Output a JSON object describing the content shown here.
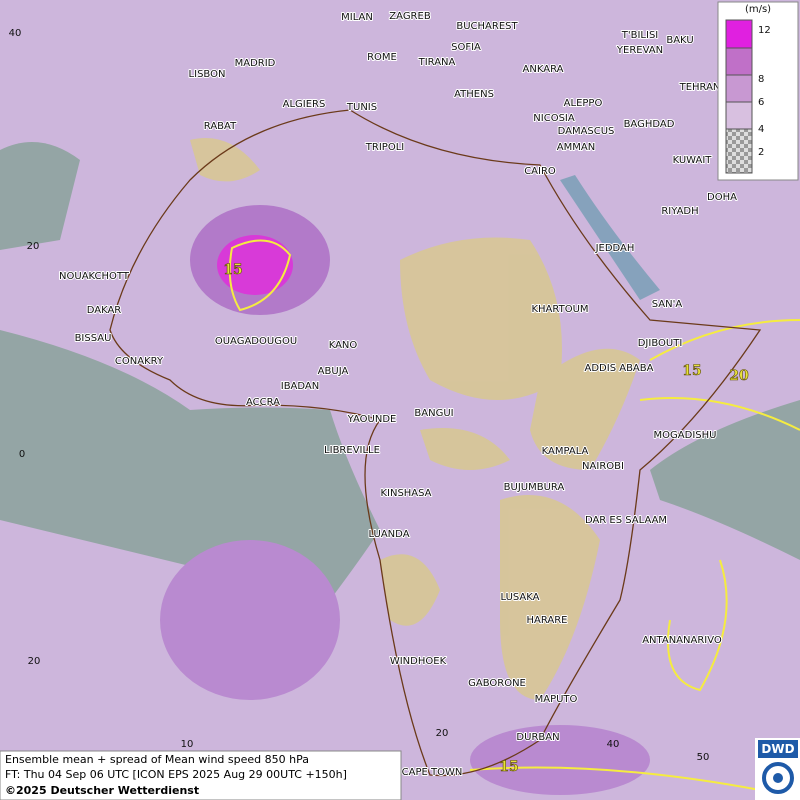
{
  "map": {
    "cities": [
      "MILAN",
      "ZAGREB",
      "BUCHAREST",
      "T'BILISI",
      "BAKU",
      "MADRID",
      "ROME",
      "SOFIA",
      "YEREVAN",
      "LISBON",
      "TIRANA",
      "ANKARA",
      "TEHRAN",
      "ALGIERS",
      "TUNIS",
      "ATHENS",
      "ALEPPO",
      "RABAT",
      "NICOSIA",
      "BAGHDAD",
      "DAMASCUS",
      "AMMAN",
      "TRIPOLI",
      "KUWAIT",
      "CAIRO",
      "DOHA",
      "RIYADH",
      "JEDDAH",
      "NOUAKCHOTT",
      "DAKAR",
      "SAN'A",
      "KHARTOUM",
      "BISSAU",
      "OUAGADOUGOU",
      "KANO",
      "DJIBOUTI",
      "CONAKRY",
      "ABUJA",
      "ADDIS ABABA",
      "IBADAN",
      "ACCRA",
      "YAOUNDE",
      "BANGUI",
      "MOGADISHU",
      "LIBREVILLE",
      "KAMPALA",
      "NAIROBI",
      "KINSHASA",
      "BUJUMBURA",
      "DAR ES SALAAM",
      "LUANDA",
      "LUSAKA",
      "HARARE",
      "ANTANANARIVO",
      "WINDHOEK",
      "GABORONE",
      "MAPUTO",
      "DURBAN",
      "CAPE TOWN"
    ],
    "lat_labels": [
      "40",
      "20",
      "0",
      "20"
    ],
    "lon_labels": [
      "10",
      "20",
      "40",
      "50"
    ],
    "contour_labels": [
      "15",
      "15",
      "20",
      "15"
    ]
  },
  "legend": {
    "unit": "(m/s)",
    "levels": [
      "12",
      "8",
      "6",
      "4",
      "2"
    ]
  },
  "footer": {
    "line1": "Ensemble mean + spread of Mean wind speed 850 hPa",
    "line2": "FT: Thu 04 Sep 06 UTC [ICON EPS 2025 Aug 29 00UTC +150h]",
    "line3": "©2025 Deutscher Wetterdienst"
  },
  "logo": "DWD"
}
